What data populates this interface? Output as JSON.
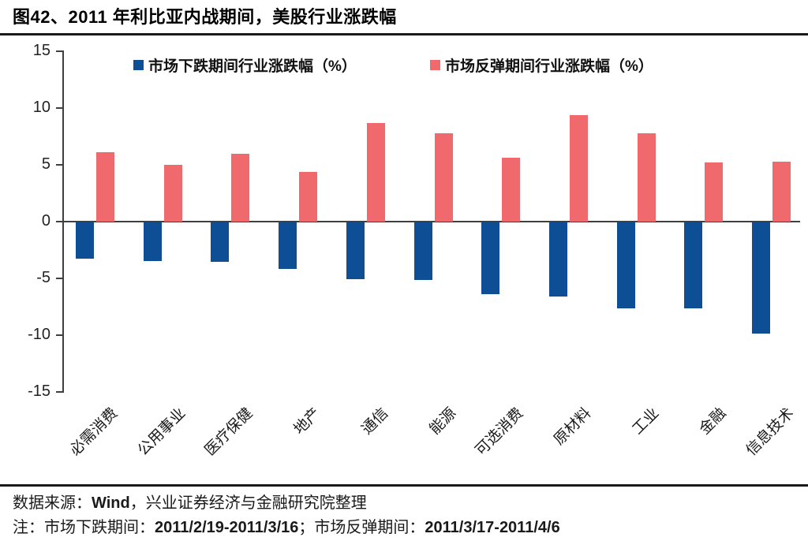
{
  "title": "图42、2011 年利比亚内战期间，美股行业涨跌幅",
  "chart_data": {
    "type": "bar",
    "categories": [
      "必需消费",
      "公用事业",
      "医疗保健",
      "地产",
      "通信",
      "能源",
      "可选消费",
      "原材料",
      "工业",
      "金融",
      "信息技术"
    ],
    "series": [
      {
        "name": "市场下跌期间行业涨跌幅（%）",
        "color": "#0D4E94",
        "values": [
          -3.2,
          -3.4,
          -3.5,
          -4.1,
          -5.0,
          -5.1,
          -6.3,
          -6.5,
          -7.6,
          -7.6,
          -9.8
        ]
      },
      {
        "name": "市场反弹期间行业涨跌幅（%）",
        "color": "#F0696C",
        "values": [
          6.1,
          5.0,
          6.0,
          4.4,
          8.7,
          7.8,
          5.6,
          9.4,
          7.8,
          5.2,
          5.3
        ]
      }
    ],
    "title": "图42、2011 年利比亚内战期间，美股行业涨跌幅",
    "xlabel": "",
    "ylabel": "",
    "ylim": [
      -15,
      15
    ],
    "yticks": [
      15,
      10,
      5,
      0,
      -5,
      -10,
      -15
    ],
    "grid": false,
    "legend_position": "top"
  },
  "footer": {
    "source_prefix": "数据来源：",
    "source_wind": "Wind",
    "source_rest": "，兴业证券经济与金融研究院整理",
    "note_prefix": "注：市场下跌期间：",
    "note_range1": "2011/2/19-2011/3/16",
    "note_mid": "；市场反弹期间：",
    "note_range2": "2011/3/17-2011/4/6"
  }
}
